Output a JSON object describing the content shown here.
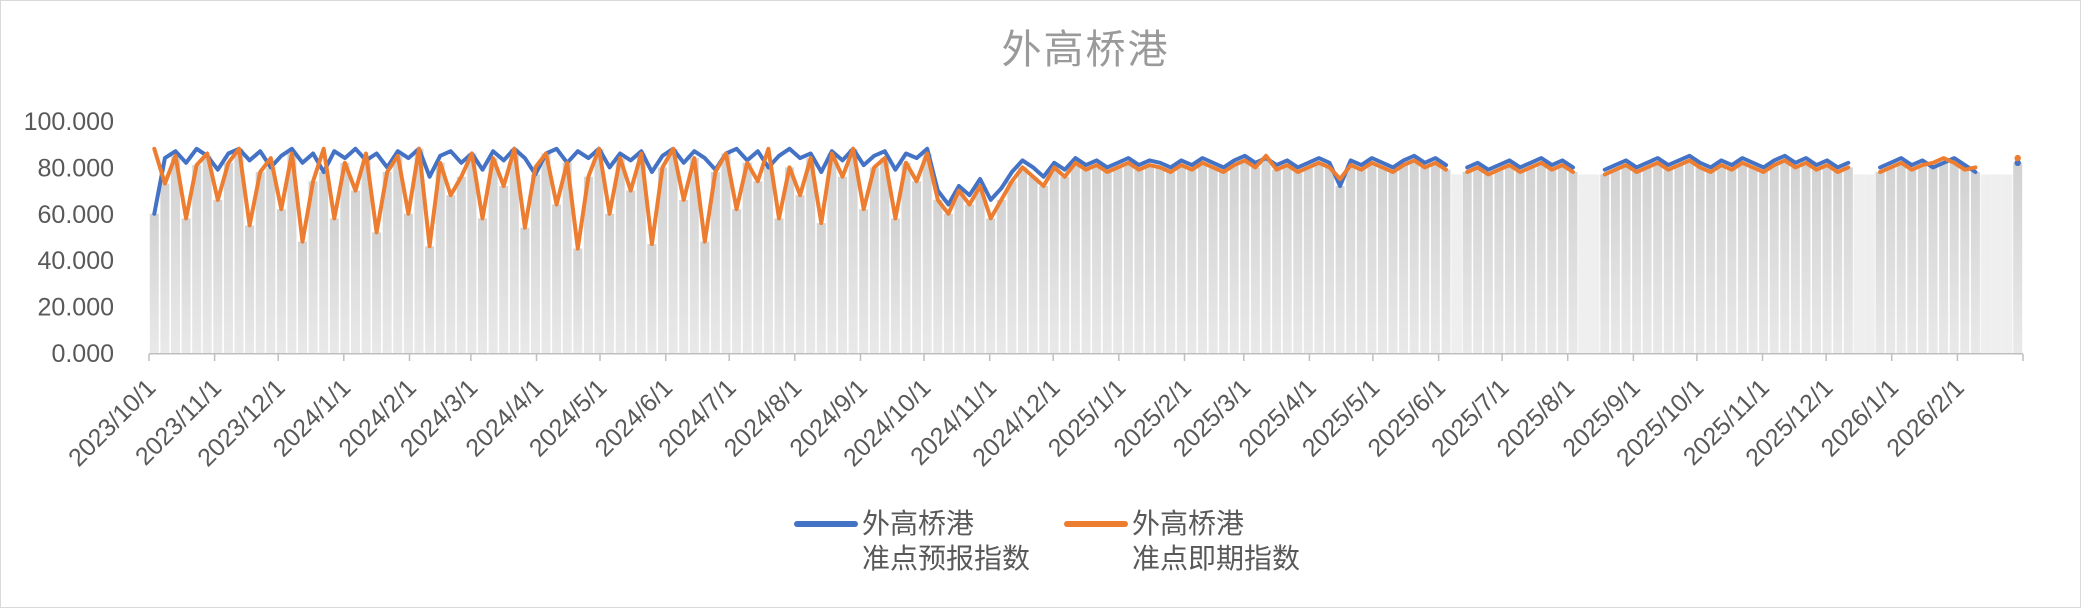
{
  "chart_data": {
    "type": "line",
    "title": "外高桥港",
    "start_date": "2023/10/1",
    "interval_days": 5,
    "ylim": [
      0,
      100
    ],
    "grid": "off",
    "legend_position": "bottom",
    "colors": {
      "axis_line": "#bfbfbf",
      "tick_label": "#595959",
      "title": "#9a9a9a",
      "bar_top": "#d2d2d2",
      "bar_bottom": "#e9e9e9",
      "missing_band": "#efefef",
      "series_forecast": "#4472c4",
      "series_spot": "#ed7d31"
    },
    "y_ticks": [
      {
        "value": 0,
        "label": "0.000"
      },
      {
        "value": 20,
        "label": "20.000"
      },
      {
        "value": 40,
        "label": "40.000"
      },
      {
        "value": 60,
        "label": "60.000"
      },
      {
        "value": 80,
        "label": "80.000"
      },
      {
        "value": 100,
        "label": "100.000"
      }
    ],
    "x_tick_labels": [
      "2023/10/1",
      "2023/11/1",
      "2023/12/1",
      "2024/1/1",
      "2024/2/1",
      "2024/3/1",
      "2024/4/1",
      "2024/5/1",
      "2024/6/1",
      "2024/7/1",
      "2024/8/1",
      "2024/9/1",
      "2024/10/1",
      "2024/11/1",
      "2024/12/1",
      "2025/1/1",
      "2025/2/1",
      "2025/3/1",
      "2025/4/1",
      "2025/5/1",
      "2025/6/1",
      "2025/7/1",
      "2025/8/1",
      "2025/9/1",
      "2025/10/1",
      "2025/11/1",
      "2025/12/1",
      "2026/1/1",
      "2026/2/1"
    ],
    "background_bars": {
      "derive": "min-of-series",
      "missing_band_top": 77
    },
    "series": [
      {
        "name": "外高桥港准点预报指数",
        "color": "#4472c4",
        "values": [
          60,
          84,
          87,
          82,
          88,
          85,
          79,
          86,
          88,
          83,
          87,
          80,
          85,
          88,
          82,
          86,
          78,
          87,
          84,
          88,
          83,
          86,
          80,
          87,
          84,
          88,
          76,
          85,
          87,
          82,
          86,
          79,
          87,
          83,
          88,
          84,
          77,
          86,
          88,
          82,
          87,
          84,
          88,
          80,
          86,
          83,
          87,
          78,
          85,
          88,
          82,
          87,
          84,
          79,
          86,
          88,
          83,
          87,
          80,
          85,
          88,
          84,
          86,
          78,
          87,
          83,
          88,
          81,
          85,
          87,
          79,
          86,
          84,
          88,
          70,
          64,
          72,
          68,
          75,
          66,
          71,
          78,
          83,
          80,
          76,
          82,
          79,
          84,
          81,
          83,
          80,
          82,
          84,
          81,
          83,
          82,
          80,
          83,
          81,
          84,
          82,
          80,
          83,
          85,
          82,
          84,
          81,
          83,
          80,
          82,
          84,
          82,
          72,
          83,
          81,
          84,
          82,
          80,
          83,
          85,
          82,
          84,
          81,
          null,
          80,
          82,
          79,
          81,
          83,
          80,
          82,
          84,
          81,
          83,
          80,
          null,
          null,
          79,
          81,
          83,
          80,
          82,
          84,
          81,
          83,
          85,
          82,
          80,
          83,
          81,
          84,
          82,
          80,
          83,
          85,
          82,
          84,
          81,
          83,
          80,
          82,
          null,
          null,
          80,
          82,
          84,
          81,
          83,
          80,
          82,
          84,
          81,
          78,
          null,
          null,
          null,
          82
        ]
      },
      {
        "name": "外高桥港准点即期指数",
        "color": "#ed7d31",
        "values": [
          88,
          73,
          85,
          58,
          81,
          86,
          66,
          82,
          88,
          55,
          78,
          84,
          62,
          86,
          48,
          74,
          88,
          58,
          82,
          70,
          86,
          52,
          78,
          85,
          60,
          88,
          46,
          82,
          68,
          76,
          86,
          58,
          84,
          72,
          88,
          54,
          80,
          86,
          64,
          82,
          45,
          76,
          88,
          60,
          84,
          70,
          86,
          47,
          80,
          88,
          66,
          84,
          48,
          78,
          86,
          62,
          82,
          74,
          88,
          58,
          80,
          68,
          84,
          56,
          86,
          76,
          88,
          62,
          80,
          84,
          58,
          82,
          74,
          86,
          66,
          60,
          70,
          64,
          72,
          58,
          66,
          74,
          80,
          76,
          72,
          80,
          76,
          82,
          79,
          81,
          78,
          80,
          82,
          79,
          81,
          80,
          78,
          81,
          79,
          82,
          80,
          78,
          81,
          83,
          80,
          85,
          79,
          81,
          78,
          80,
          82,
          80,
          75,
          81,
          79,
          82,
          80,
          78,
          81,
          83,
          80,
          82,
          79,
          null,
          78,
          80,
          77,
          79,
          81,
          78,
          80,
          82,
          79,
          81,
          78,
          null,
          null,
          77,
          79,
          81,
          78,
          80,
          82,
          79,
          81,
          83,
          80,
          78,
          81,
          79,
          82,
          80,
          78,
          81,
          83,
          80,
          82,
          79,
          81,
          78,
          80,
          null,
          null,
          78,
          80,
          82,
          79,
          81,
          82,
          84,
          82,
          79,
          80,
          null,
          null,
          null,
          84
        ]
      }
    ],
    "legend": {
      "items": [
        {
          "line1": "外高桥港",
          "line2": "准点预报指数",
          "color": "#4472c4"
        },
        {
          "line1": "外高桥港",
          "line2": "准点即期指数",
          "color": "#ed7d31"
        }
      ]
    }
  }
}
